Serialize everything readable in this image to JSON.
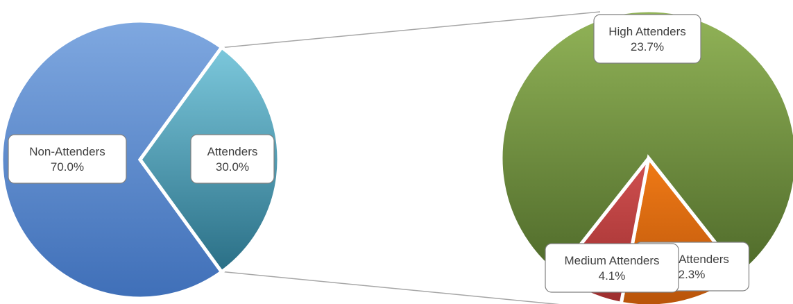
{
  "chart_data": {
    "type": "pie",
    "chart_subtype": "pie-of-pie",
    "title": "",
    "grid": false,
    "legend": "none",
    "main_pie": {
      "slices": [
        {
          "label": "Non-Attenders",
          "value": 70.0,
          "value_label": "70.0%",
          "color_top": "#7fa8e0",
          "color_bottom": "#3f6fb8"
        },
        {
          "label": "Attenders",
          "value": 30.0,
          "value_label": "30.0%",
          "color_top": "#7cc8dc",
          "color_bottom": "#2a6f86"
        }
      ]
    },
    "secondary_pie": {
      "source_slice": "Attenders",
      "slices": [
        {
          "label": "High Attenders",
          "value": 23.7,
          "value_label": "23.7%",
          "color_top": "#92b458",
          "color_bottom": "#4f6a2a"
        },
        {
          "label": "Medium Attenders",
          "value": 4.1,
          "value_label": "4.1%",
          "color_top": "#f07a16",
          "color_bottom": "#b8540a"
        },
        {
          "label": "Low Attenders",
          "value": 2.3,
          "value_label": "2.3%",
          "color_top": "#d05050",
          "color_bottom": "#9c2e2e"
        }
      ]
    },
    "connector_color": "#a6a6a6"
  }
}
